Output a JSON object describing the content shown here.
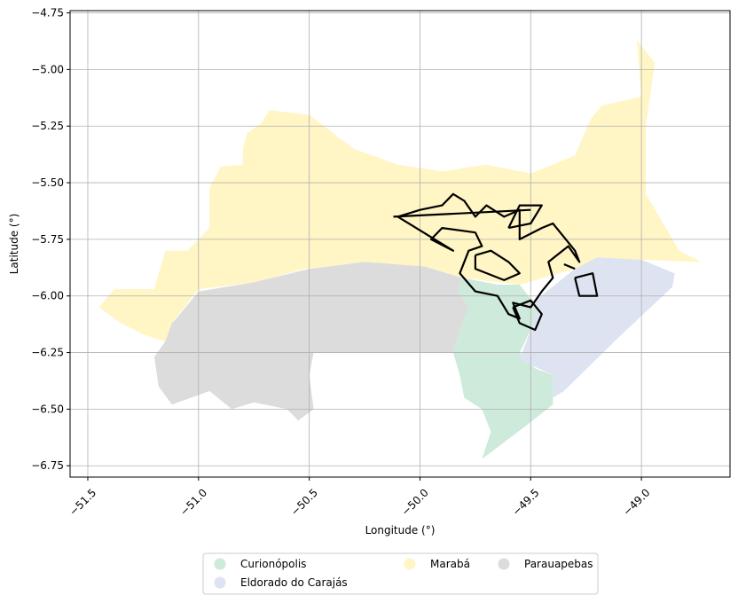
{
  "chart_data": {
    "type": "map",
    "xlabel": "Longitude (°)",
    "ylabel": "Latitude (°)",
    "xlim": [
      -51.58,
      -48.6
    ],
    "ylim": [
      -6.8,
      -4.74
    ],
    "xticks": [
      -51.5,
      -51.0,
      -50.5,
      -50.0,
      -49.5,
      -49.0
    ],
    "xtick_labels": [
      "−51.5",
      "−51.0",
      "−50.5",
      "−50.0",
      "−49.5",
      "−49.0"
    ],
    "yticks": [
      -4.75,
      -5.0,
      -5.25,
      -5.5,
      -5.75,
      -6.0,
      -6.25,
      -6.5,
      -6.75
    ],
    "ytick_labels": [
      "−4.75",
      "−5.00",
      "−5.25",
      "−5.50",
      "−5.75",
      "−6.00",
      "−6.25",
      "−6.50",
      "−6.75"
    ],
    "grid": true,
    "legend_position": "bottom-center",
    "regions": [
      {
        "name": "Curionópolis",
        "color": "#cdeadb",
        "polygon": [
          [
            -49.81,
            -5.92
          ],
          [
            -49.65,
            -5.95
          ],
          [
            -49.55,
            -5.95
          ],
          [
            -49.47,
            -6.05
          ],
          [
            -49.5,
            -6.15
          ],
          [
            -49.55,
            -6.25
          ],
          [
            -49.48,
            -6.32
          ],
          [
            -49.4,
            -6.35
          ],
          [
            -49.4,
            -6.48
          ],
          [
            -49.53,
            -6.58
          ],
          [
            -49.72,
            -6.72
          ],
          [
            -49.68,
            -6.6
          ],
          [
            -49.72,
            -6.5
          ],
          [
            -49.8,
            -6.45
          ],
          [
            -49.82,
            -6.35
          ],
          [
            -49.85,
            -6.25
          ],
          [
            -49.82,
            -6.15
          ],
          [
            -49.78,
            -6.05
          ],
          [
            -49.83,
            -5.98
          ]
        ]
      },
      {
        "name": "Eldorado do Carajás",
        "color": "#dde3f1",
        "polygon": [
          [
            -49.53,
            -6.06
          ],
          [
            -49.3,
            -5.88
          ],
          [
            -49.2,
            -5.83
          ],
          [
            -49.0,
            -5.84
          ],
          [
            -48.85,
            -5.9
          ],
          [
            -48.86,
            -5.96
          ],
          [
            -49.1,
            -6.18
          ],
          [
            -49.35,
            -6.42
          ],
          [
            -49.4,
            -6.45
          ],
          [
            -49.4,
            -6.35
          ],
          [
            -49.55,
            -6.28
          ],
          [
            -49.5,
            -6.15
          ],
          [
            -49.47,
            -6.05
          ]
        ]
      },
      {
        "name": "Marabá",
        "color": "#fff5c5",
        "polygon": [
          [
            -51.45,
            -6.05
          ],
          [
            -51.38,
            -5.97
          ],
          [
            -51.2,
            -5.97
          ],
          [
            -51.15,
            -5.8
          ],
          [
            -51.05,
            -5.8
          ],
          [
            -50.95,
            -5.7
          ],
          [
            -50.95,
            -5.52
          ],
          [
            -50.9,
            -5.43
          ],
          [
            -50.8,
            -5.42
          ],
          [
            -50.8,
            -5.35
          ],
          [
            -50.78,
            -5.28
          ],
          [
            -50.72,
            -5.24
          ],
          [
            -50.68,
            -5.18
          ],
          [
            -50.5,
            -5.2
          ],
          [
            -50.3,
            -5.35
          ],
          [
            -50.1,
            -5.42
          ],
          [
            -49.9,
            -5.45
          ],
          [
            -49.7,
            -5.42
          ],
          [
            -49.5,
            -5.46
          ],
          [
            -49.3,
            -5.38
          ],
          [
            -49.23,
            -5.22
          ],
          [
            -49.18,
            -5.16
          ],
          [
            -49.0,
            -5.12
          ],
          [
            -49.01,
            -5.0
          ],
          [
            -49.02,
            -4.87
          ],
          [
            -48.94,
            -4.97
          ],
          [
            -48.98,
            -5.25
          ],
          [
            -48.98,
            -5.55
          ],
          [
            -48.83,
            -5.8
          ],
          [
            -48.73,
            -5.85
          ],
          [
            -49.0,
            -5.84
          ],
          [
            -49.2,
            -5.83
          ],
          [
            -49.3,
            -5.88
          ],
          [
            -49.55,
            -5.95
          ],
          [
            -49.81,
            -5.92
          ],
          [
            -49.98,
            -5.87
          ],
          [
            -50.25,
            -5.85
          ],
          [
            -50.52,
            -5.88
          ],
          [
            -50.75,
            -5.94
          ],
          [
            -51.0,
            -5.97
          ],
          [
            -51.12,
            -6.12
          ],
          [
            -51.15,
            -6.2
          ],
          [
            -51.25,
            -6.17
          ],
          [
            -51.35,
            -6.12
          ]
        ]
      },
      {
        "name": "Parauapebas",
        "color": "#dcdcdc",
        "polygon": [
          [
            -51.1,
            -6.1
          ],
          [
            -51.0,
            -5.98
          ],
          [
            -50.75,
            -5.94
          ],
          [
            -50.5,
            -5.88
          ],
          [
            -50.25,
            -5.85
          ],
          [
            -49.98,
            -5.87
          ],
          [
            -49.81,
            -5.92
          ],
          [
            -49.83,
            -5.98
          ],
          [
            -49.78,
            -6.05
          ],
          [
            -49.82,
            -6.15
          ],
          [
            -49.85,
            -6.25
          ],
          [
            -50.48,
            -6.25
          ],
          [
            -50.5,
            -6.35
          ],
          [
            -50.48,
            -6.5
          ],
          [
            -50.55,
            -6.55
          ],
          [
            -50.6,
            -6.5
          ],
          [
            -50.75,
            -6.47
          ],
          [
            -50.85,
            -6.5
          ],
          [
            -50.95,
            -6.42
          ],
          [
            -51.12,
            -6.48
          ],
          [
            -51.18,
            -6.4
          ],
          [
            -51.2,
            -6.27
          ],
          [
            -51.15,
            -6.2
          ],
          [
            -51.12,
            -6.12
          ]
        ]
      }
    ],
    "outlines": [
      [
        [
          -50.1,
          -5.65
        ],
        [
          -50.0,
          -5.62
        ],
        [
          -49.9,
          -5.6
        ],
        [
          -49.85,
          -5.55
        ],
        [
          -49.8,
          -5.58
        ],
        [
          -49.75,
          -5.65
        ],
        [
          -49.7,
          -5.6
        ],
        [
          -49.62,
          -5.65
        ],
        [
          -49.55,
          -5.62
        ],
        [
          -49.55,
          -5.75
        ],
        [
          -49.45,
          -5.7
        ],
        [
          -49.4,
          -5.68
        ],
        [
          -49.3,
          -5.8
        ],
        [
          -49.28,
          -5.85
        ],
        [
          -49.33,
          -5.78
        ],
        [
          -49.42,
          -5.85
        ],
        [
          -49.4,
          -5.92
        ],
        [
          -49.45,
          -5.98
        ],
        [
          -49.5,
          -6.05
        ],
        [
          -49.58,
          -6.03
        ],
        [
          -49.55,
          -6.1
        ],
        [
          -49.6,
          -6.08
        ],
        [
          -49.65,
          -6.0
        ],
        [
          -49.75,
          -5.98
        ],
        [
          -49.82,
          -5.9
        ],
        [
          -49.78,
          -5.8
        ],
        [
          -49.72,
          -5.78
        ],
        [
          -49.75,
          -5.72
        ],
        [
          -49.9,
          -5.7
        ],
        [
          -49.95,
          -5.75
        ],
        [
          -49.85,
          -5.8
        ],
        [
          -50.1,
          -5.65
        ]
      ],
      [
        [
          -49.6,
          -5.7
        ],
        [
          -49.5,
          -5.68
        ],
        [
          -49.45,
          -5.6
        ],
        [
          -49.55,
          -5.6
        ],
        [
          -49.6,
          -5.7
        ]
      ],
      [
        [
          -49.75,
          -5.82
        ],
        [
          -49.68,
          -5.8
        ],
        [
          -49.6,
          -5.85
        ],
        [
          -49.55,
          -5.9
        ],
        [
          -49.62,
          -5.93
        ],
        [
          -49.75,
          -5.88
        ],
        [
          -49.75,
          -5.82
        ]
      ],
      [
        [
          -49.58,
          -6.05
        ],
        [
          -49.5,
          -6.02
        ],
        [
          -49.45,
          -6.08
        ],
        [
          -49.48,
          -6.15
        ],
        [
          -49.55,
          -6.12
        ],
        [
          -49.58,
          -6.05
        ]
      ],
      [
        [
          -49.3,
          -5.92
        ],
        [
          -49.22,
          -5.9
        ],
        [
          -49.2,
          -6.0
        ],
        [
          -49.28,
          -6.0
        ],
        [
          -49.3,
          -5.92
        ]
      ],
      [
        [
          -49.35,
          -5.86
        ],
        [
          -49.3,
          -5.88
        ]
      ],
      [
        [
          -50.12,
          -5.65
        ],
        [
          -49.5,
          -5.62
        ]
      ]
    ],
    "legend": [
      {
        "label": "Curionópolis",
        "color": "#cdeadb"
      },
      {
        "label": "Eldorado do Carajás",
        "color": "#dde3f1"
      },
      {
        "label": "Marabá",
        "color": "#fff5c5"
      },
      {
        "label": "Parauapebas",
        "color": "#dcdcdc"
      }
    ]
  }
}
